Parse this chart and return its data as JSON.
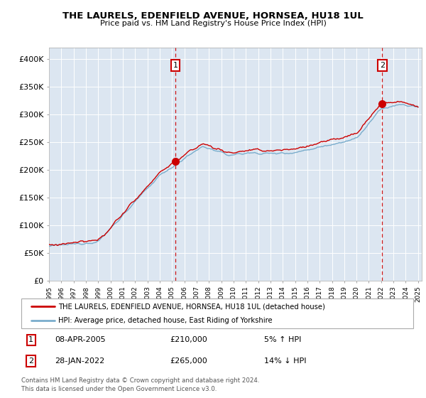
{
  "title": "THE LAURELS, EDENFIELD AVENUE, HORNSEA, HU18 1UL",
  "subtitle": "Price paid vs. HM Land Registry's House Price Index (HPI)",
  "plot_bg_color": "#dce6f1",
  "ylim": [
    0,
    420000
  ],
  "yticks": [
    0,
    50000,
    100000,
    150000,
    200000,
    250000,
    300000,
    350000,
    400000
  ],
  "ytick_labels": [
    "£0",
    "£50K",
    "£100K",
    "£150K",
    "£200K",
    "£250K",
    "£300K",
    "£350K",
    "£400K"
  ],
  "sale1_year": 2005.27,
  "sale1_price": 210000,
  "sale2_year": 2022.08,
  "sale2_price": 265000,
  "legend_line1": "THE LAURELS, EDENFIELD AVENUE, HORNSEA, HU18 1UL (detached house)",
  "legend_line2": "HPI: Average price, detached house, East Riding of Yorkshire",
  "footer1": "Contains HM Land Registry data © Crown copyright and database right 2024.",
  "footer2": "This data is licensed under the Open Government Licence v3.0.",
  "red_color": "#cc0000",
  "blue_color": "#7aadcc",
  "sale1_date": "08-APR-2005",
  "sale2_date": "28-JAN-2022"
}
